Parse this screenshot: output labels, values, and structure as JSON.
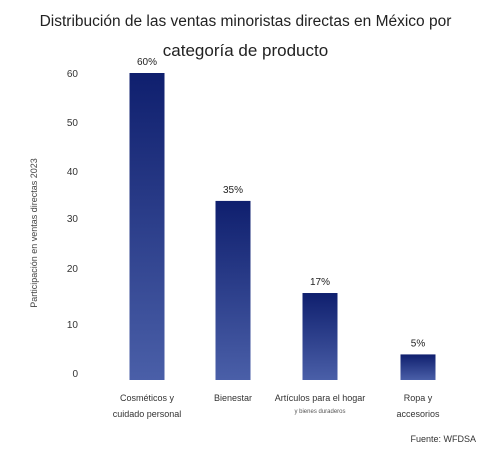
{
  "chart_data": {
    "type": "bar",
    "title_line1": "Distribución de las ventas minoristas directas en México por",
    "title_line2": "categoría de producto",
    "ylabel": "Participación en ventas directas 2023",
    "xlabel": "",
    "ylim": [
      0,
      60
    ],
    "yticks": [
      0,
      10,
      20,
      30,
      40,
      50,
      60
    ],
    "grid": false,
    "categories": [
      {
        "lines": [
          "Cosméticos y",
          "cuidado personal"
        ],
        "sub": ""
      },
      {
        "lines": [
          "Bienestar"
        ],
        "sub": ""
      },
      {
        "lines": [
          "Artículos para el hogar"
        ],
        "sub": "y bienes duraderos"
      },
      {
        "lines": [
          "Ropa y",
          "accesorios"
        ],
        "sub": ""
      }
    ],
    "values": [
      60,
      35,
      17,
      5
    ],
    "data_labels": [
      "60%",
      "35%",
      "17%",
      "5%"
    ],
    "colors": {
      "bar_top": "#0f1f6e",
      "bar_bottom": "#4a5fa8"
    },
    "source": "Fuente: WFDSA"
  }
}
